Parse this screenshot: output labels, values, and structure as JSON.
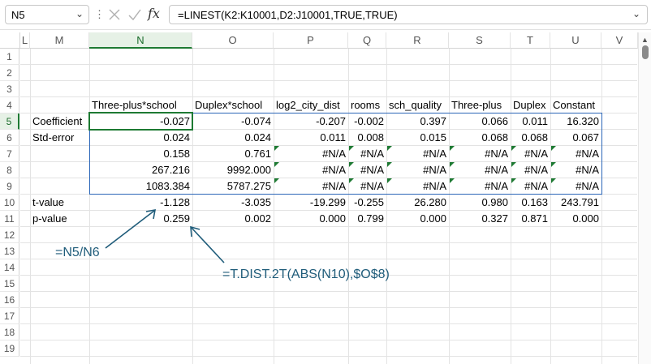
{
  "formula_bar": {
    "name_box": "N5",
    "fx_symbol": "fx",
    "formula": "=LINEST(K2:K10001,D2:J10001,TRUE,TRUE)",
    "separator": "⋮"
  },
  "columns": [
    "L",
    "M",
    "N",
    "O",
    "P",
    "Q",
    "R",
    "S",
    "T",
    "U",
    "V"
  ],
  "selected_column": "N",
  "rows": [
    "1",
    "2",
    "3",
    "4",
    "5",
    "6",
    "7",
    "8",
    "9",
    "10",
    "11",
    "12",
    "13",
    "14",
    "15",
    "16",
    "17",
    "18",
    "19"
  ],
  "selected_row": "5",
  "headers": [
    "Three-plus*school",
    "Duplex*school",
    "log2_city_dist",
    "rooms",
    "sch_quality",
    "Three-plus",
    "Duplex",
    "Constant"
  ],
  "row_labels": {
    "r5": "Coefficient",
    "r6": "Std-error",
    "r10": "t-value",
    "r11": "p-value"
  },
  "table": [
    [
      "-0.027",
      "-0.074",
      "-0.207",
      "-0.002",
      "0.397",
      "0.066",
      "0.011",
      "16.320"
    ],
    [
      "0.024",
      "0.024",
      "0.011",
      "0.008",
      "0.015",
      "0.068",
      "0.068",
      "0.067"
    ],
    [
      "0.158",
      "0.761",
      "#N/A",
      "#N/A",
      "#N/A",
      "#N/A",
      "#N/A",
      "#N/A"
    ],
    [
      "267.216",
      "9992.000",
      "#N/A",
      "#N/A",
      "#N/A",
      "#N/A",
      "#N/A",
      "#N/A"
    ],
    [
      "1083.384",
      "5787.275",
      "#N/A",
      "#N/A",
      "#N/A",
      "#N/A",
      "#N/A",
      "#N/A"
    ],
    [
      "-1.128",
      "-3.035",
      "-19.299",
      "-0.255",
      "26.280",
      "0.980",
      "0.163",
      "243.791"
    ],
    [
      "0.259",
      "0.002",
      "0.000",
      "0.799",
      "0.000",
      "0.327",
      "0.871",
      "0.000"
    ]
  ],
  "annotations": {
    "t_formula": "=N5/N6",
    "p_formula": "=T.DIST.2T(ABS(N10),$O$8)"
  },
  "colors": {
    "selection": "#1e7a33",
    "array_border": "#2b66b8",
    "annotation": "#1f5c7a"
  }
}
